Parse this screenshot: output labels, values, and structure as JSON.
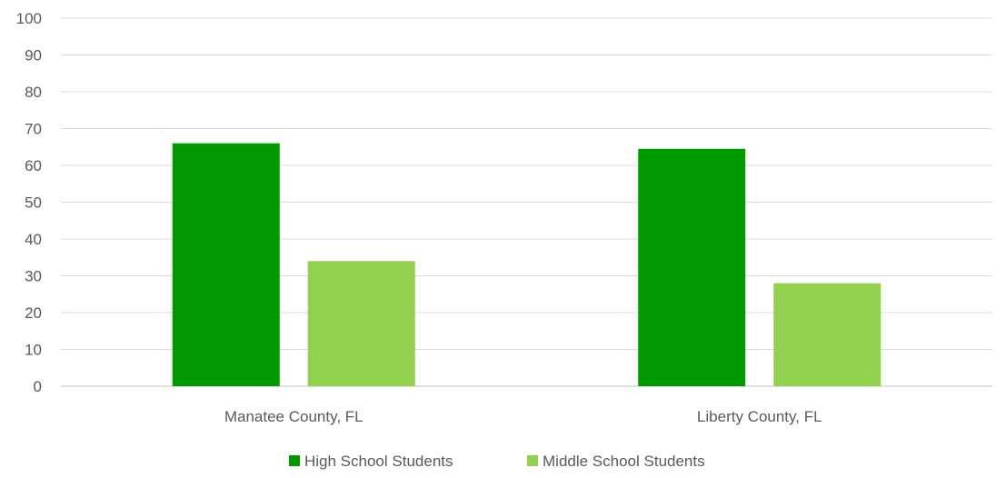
{
  "chart_data": {
    "type": "bar",
    "categories": [
      "Manatee County, FL",
      "Liberty County, FL"
    ],
    "series": [
      {
        "name": "High School Students",
        "values": [
          66,
          64.5
        ],
        "color": "#009900"
      },
      {
        "name": "Middle School Students",
        "values": [
          34,
          28
        ],
        "color": "#92D050"
      }
    ],
    "ylim": [
      0,
      100
    ],
    "yticks": [
      0,
      10,
      20,
      30,
      40,
      50,
      60,
      70,
      80,
      90,
      100
    ],
    "grid": true,
    "legend_position": "bottom"
  }
}
